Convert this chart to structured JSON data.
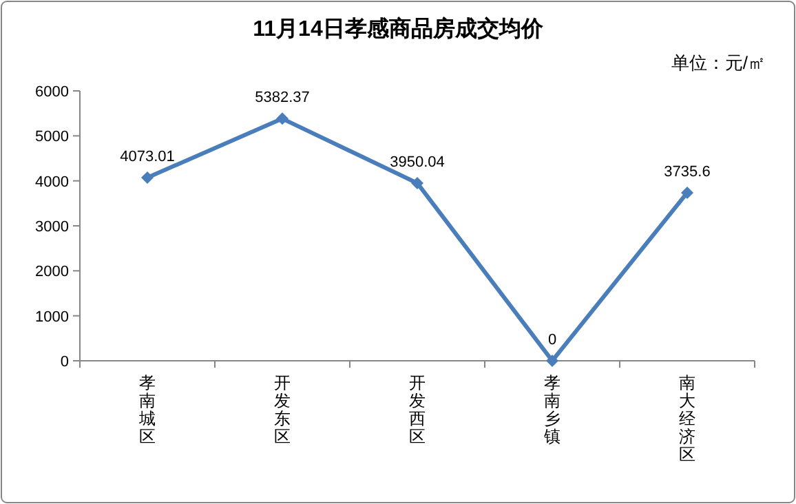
{
  "chart_data": {
    "type": "line",
    "title": "11月14日孝感商品房成交均价",
    "annotations": [
      "单位：元/㎡"
    ],
    "categories": [
      "孝南城区",
      "开发东区",
      "开发西区",
      "孝南乡镇",
      "南大经济区"
    ],
    "series": [
      {
        "color": "#4a7ebb",
        "values": [
          4073.01,
          5382.37,
          3950.04,
          0,
          3735.6
        ]
      }
    ],
    "ylim": [
      0,
      6000
    ],
    "yticks": [
      0,
      1000,
      2000,
      3000,
      4000,
      5000,
      6000
    ],
    "marker": "diamond",
    "line_style": "solid",
    "data_labels": true
  }
}
